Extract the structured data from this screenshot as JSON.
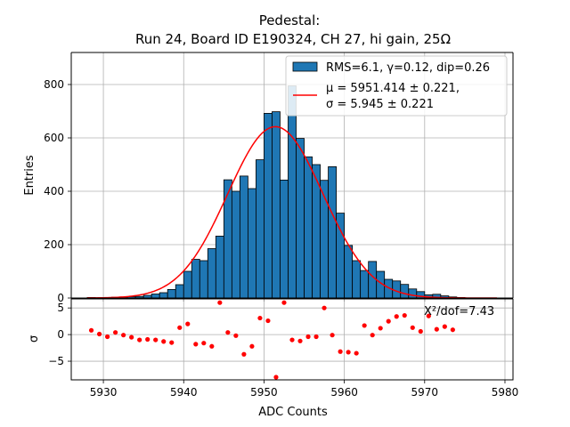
{
  "chart_data": [
    {
      "type": "bar",
      "title": [
        "Pedestal:",
        "Run 24, Board ID E190324, CH 27, hi gain, 25Ω"
      ],
      "xlabel": "",
      "ylabel": "Entries",
      "xlim": [
        5926,
        5981
      ],
      "ylim": [
        0,
        920
      ],
      "yticks": [
        0,
        200,
        400,
        600,
        800
      ],
      "grid": true,
      "legend_position": "top-right",
      "bin_width": 1,
      "bins": [
        {
          "x": 5928,
          "v": 2
        },
        {
          "x": 5929,
          "v": 1
        },
        {
          "x": 5930,
          "v": 1
        },
        {
          "x": 5931,
          "v": 3
        },
        {
          "x": 5932,
          "v": 4
        },
        {
          "x": 5933,
          "v": 5
        },
        {
          "x": 5934,
          "v": 6
        },
        {
          "x": 5935,
          "v": 10
        },
        {
          "x": 5936,
          "v": 15
        },
        {
          "x": 5937,
          "v": 20
        },
        {
          "x": 5938,
          "v": 32
        },
        {
          "x": 5939,
          "v": 50
        },
        {
          "x": 5940,
          "v": 100
        },
        {
          "x": 5941,
          "v": 145
        },
        {
          "x": 5942,
          "v": 140
        },
        {
          "x": 5943,
          "v": 185
        },
        {
          "x": 5944,
          "v": 232
        },
        {
          "x": 5945,
          "v": 443
        },
        {
          "x": 5946,
          "v": 400
        },
        {
          "x": 5947,
          "v": 457
        },
        {
          "x": 5948,
          "v": 410
        },
        {
          "x": 5949,
          "v": 518
        },
        {
          "x": 5950,
          "v": 692
        },
        {
          "x": 5951,
          "v": 698
        },
        {
          "x": 5952,
          "v": 442
        },
        {
          "x": 5953,
          "v": 795
        },
        {
          "x": 5954,
          "v": 598
        },
        {
          "x": 5955,
          "v": 529
        },
        {
          "x": 5956,
          "v": 500
        },
        {
          "x": 5957,
          "v": 441
        },
        {
          "x": 5958,
          "v": 492
        },
        {
          "x": 5959,
          "v": 318
        },
        {
          "x": 5960,
          "v": 197
        },
        {
          "x": 5961,
          "v": 140
        },
        {
          "x": 5962,
          "v": 103
        },
        {
          "x": 5963,
          "v": 137
        },
        {
          "x": 5964,
          "v": 100
        },
        {
          "x": 5965,
          "v": 70
        },
        {
          "x": 5966,
          "v": 64
        },
        {
          "x": 5967,
          "v": 51
        },
        {
          "x": 5968,
          "v": 34
        },
        {
          "x": 5969,
          "v": 24
        },
        {
          "x": 5970,
          "v": 12
        },
        {
          "x": 5971,
          "v": 14
        },
        {
          "x": 5972,
          "v": 8
        },
        {
          "x": 5973,
          "v": 4
        },
        {
          "x": 5974,
          "v": 2
        }
      ],
      "fit": {
        "type": "gaussian",
        "mu": 5951.414,
        "sigma": 5.945,
        "amplitude": 642,
        "color": "#ff0000"
      },
      "legend": [
        {
          "label": "RMS=6.1, γ=0.12, dip=0.26",
          "color": "#1f77b4"
        },
        {
          "label_lines": [
            "μ = 5951.414 ± 0.221,",
            "σ = 5.945 ± 0.221"
          ],
          "color": "#ff0000"
        }
      ]
    },
    {
      "type": "scatter",
      "xlabel": "ADC Counts",
      "ylabel": "σ",
      "xlim": [
        5926,
        5981
      ],
      "ylim": [
        -8.5,
        6.7
      ],
      "xticks": [
        5930,
        5940,
        5950,
        5960,
        5970,
        5980
      ],
      "yticks": [
        -5,
        0,
        5
      ],
      "grid": true,
      "annotation": "Χ²/dof=7.43",
      "point_color": "#ff0000",
      "points": [
        [
          5928.5,
          0.8
        ],
        [
          5929.5,
          0.1
        ],
        [
          5930.5,
          -0.4
        ],
        [
          5931.5,
          0.4
        ],
        [
          5932.5,
          -0.1
        ],
        [
          5933.5,
          -0.5
        ],
        [
          5934.5,
          -1.0
        ],
        [
          5935.5,
          -0.9
        ],
        [
          5936.5,
          -1.0
        ],
        [
          5937.5,
          -1.3
        ],
        [
          5938.5,
          -1.5
        ],
        [
          5939.5,
          1.3
        ],
        [
          5940.5,
          2.0
        ],
        [
          5941.5,
          -1.8
        ],
        [
          5942.5,
          -1.6
        ],
        [
          5943.5,
          -2.2
        ],
        [
          5944.5,
          6.0
        ],
        [
          5945.5,
          0.4
        ],
        [
          5946.5,
          -0.2
        ],
        [
          5947.5,
          -3.7
        ],
        [
          5948.5,
          -2.2
        ],
        [
          5949.5,
          3.1
        ],
        [
          5950.5,
          2.6
        ],
        [
          5951.5,
          -8.0
        ],
        [
          5952.5,
          6.0
        ],
        [
          5953.5,
          -1.0
        ],
        [
          5954.5,
          -1.2
        ],
        [
          5955.5,
          -0.4
        ],
        [
          5956.5,
          -0.4
        ],
        [
          5957.5,
          5.0
        ],
        [
          5958.5,
          -0.1
        ],
        [
          5959.5,
          -3.2
        ],
        [
          5960.5,
          -3.3
        ],
        [
          5961.5,
          -3.5
        ],
        [
          5962.5,
          1.7
        ],
        [
          5963.5,
          -0.1
        ],
        [
          5964.5,
          1.2
        ],
        [
          5965.5,
          2.5
        ],
        [
          5966.5,
          3.4
        ],
        [
          5967.5,
          3.6
        ],
        [
          5968.5,
          1.3
        ],
        [
          5969.5,
          0.6
        ],
        [
          5970.5,
          3.5
        ],
        [
          5971.5,
          1.0
        ],
        [
          5972.5,
          1.5
        ],
        [
          5973.5,
          0.9
        ]
      ]
    }
  ]
}
